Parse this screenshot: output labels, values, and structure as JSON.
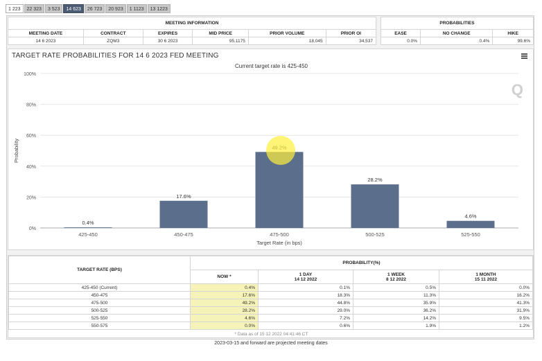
{
  "tabs": [
    "1 223",
    "22 323",
    "3 523",
    "14 623",
    "26 723",
    "20 923",
    "1 1123",
    "13 1223"
  ],
  "active_tab_index": 3,
  "meeting_info": {
    "title": "MEETING INFORMATION",
    "headers": [
      "MEETING DATE",
      "CONTRACT",
      "EXPIRES",
      "MID PRICE",
      "PRIOR VOLUME",
      "PRIOR OI"
    ],
    "values": [
      "14 6 2023",
      "ZQM3",
      "30 6 2023",
      "95.1175",
      "18,045",
      "34,537"
    ]
  },
  "probabilities": {
    "title": "PROBABILITIES",
    "headers": [
      "EASE",
      "NO CHANGE",
      "HIKE"
    ],
    "values": [
      "0.0%",
      "0.4%",
      "99.6%"
    ]
  },
  "chart": {
    "title": "TARGET RATE PROBABILITIES FOR 14 6 2023 FED MEETING",
    "subtitle": "Current target rate is 425-450",
    "logo": "Q"
  },
  "chart_data": {
    "type": "bar",
    "title": "TARGET RATE PROBABILITIES FOR 14 6 2023 FED MEETING",
    "subtitle": "Current target rate is 425-450",
    "categories": [
      "425-450",
      "450-475",
      "475-500",
      "500-525",
      "525-550"
    ],
    "values": [
      0.4,
      17.6,
      49.2,
      28.2,
      4.6
    ],
    "labels": [
      "0.4%",
      "17.6%",
      "49.2%",
      "28.2%",
      "4.6%"
    ],
    "xlabel": "Target Rate (in bps)",
    "ylabel": "Probability",
    "ylim": [
      0,
      100
    ],
    "yticks": [
      0,
      20,
      40,
      60,
      80,
      100
    ],
    "ytick_labels": [
      "0%",
      "20%",
      "40%",
      "60%",
      "80%",
      "100%"
    ],
    "bar_color": "#5b6f8c"
  },
  "prob_table": {
    "col_target": "TARGET RATE (BPS)",
    "col_prob": "PROBABILITY(%)",
    "subheaders": [
      {
        "label": "NOW *",
        "date": ""
      },
      {
        "label": "1 DAY",
        "date": "14 12 2022"
      },
      {
        "label": "1 WEEK",
        "date": "8 12 2022"
      },
      {
        "label": "1 MONTH",
        "date": "15 11 2022"
      }
    ],
    "rows": [
      {
        "rate": "425-450 (Current)",
        "now": "0.4%",
        "day": "0.1%",
        "week": "0.5%",
        "month": "0.0%"
      },
      {
        "rate": "450-475",
        "now": "17.6%",
        "day": "18.3%",
        "week": "11.3%",
        "month": "16.2%"
      },
      {
        "rate": "475-500",
        "now": "49.2%",
        "day": "44.8%",
        "week": "35.9%",
        "month": "41.3%"
      },
      {
        "rate": "500-525",
        "now": "28.2%",
        "day": "29.0%",
        "week": "36.2%",
        "month": "31.9%"
      },
      {
        "rate": "525-550",
        "now": "4.6%",
        "day": "7.2%",
        "week": "14.2%",
        "month": "9.5%"
      },
      {
        "rate": "550-575",
        "now": "0.0%",
        "day": "0.6%",
        "week": "1.9%",
        "month": "1.2%"
      }
    ],
    "footnote": "* Data as of 15 12 2022 04:41:46 CT"
  },
  "bottom_note": "2023-03-15 and forward are projected meeting dates"
}
